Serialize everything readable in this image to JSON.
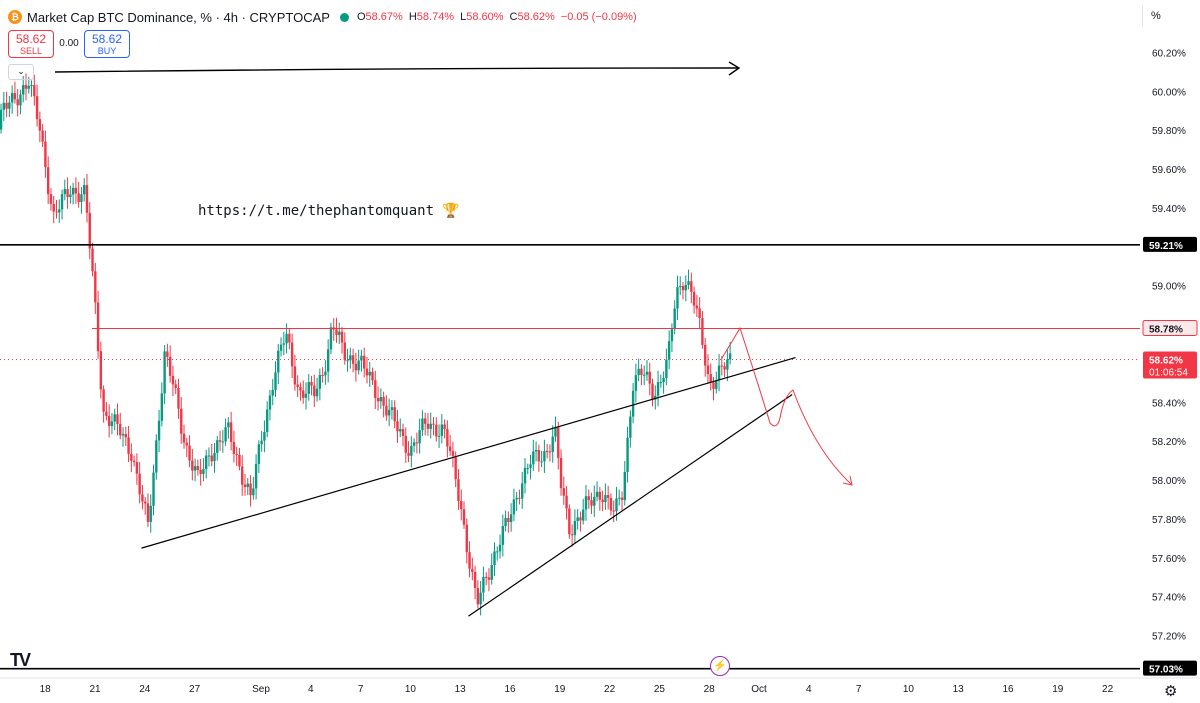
{
  "header": {
    "logo_glyph": "₿",
    "title": "Market Cap BTC Dominance, % · 4h · CRYPTOCAP",
    "ohlc": [
      {
        "key": "O",
        "value": "58.67%"
      },
      {
        "key": "H",
        "value": "58.74%"
      },
      {
        "key": "L",
        "value": "58.60%"
      },
      {
        "key": "C",
        "value": "58.62%"
      },
      {
        "key": "",
        "value": "−0.05 (−0.09%)"
      }
    ]
  },
  "trade": {
    "sell_price": "58.62",
    "sell_label": "SELL",
    "spread": "0.00",
    "buy_price": "58.62",
    "buy_label": "BUY"
  },
  "toolbar": {
    "scale_mode": "%",
    "collapse_glyph": "⌄",
    "settings_glyph": "⚙",
    "tv_logo": "TV",
    "bolt_glyph": "⚡"
  },
  "colors": {
    "up": "#089981",
    "down": "#f23645",
    "red_level": "#f23645",
    "black": "#000000"
  },
  "chart_data": {
    "type": "candlestick",
    "symbol": "Market Cap BTC Dominance, %",
    "interval": "4h",
    "ylim": [
      57.13,
      60.3
    ],
    "y_ticks": [
      "60.20%",
      "60.00%",
      "59.80%",
      "59.60%",
      "59.40%",
      "59.20%",
      "59.00%",
      "58.80%",
      "58.60%",
      "58.40%",
      "58.20%",
      "58.00%",
      "57.80%",
      "57.60%",
      "57.40%",
      "57.20%"
    ],
    "y_tick_values": [
      60.2,
      60.0,
      59.8,
      59.6,
      59.4,
      59.2,
      59.0,
      58.8,
      58.6,
      58.4,
      58.2,
      58.0,
      57.8,
      57.6,
      57.4,
      57.2
    ],
    "x_ticks": [
      "18",
      "21",
      "24",
      "27",
      "Sep",
      "4",
      "7",
      "10",
      "13",
      "16",
      "19",
      "22",
      "25",
      "28",
      "Oct",
      "4",
      "7",
      "10",
      "13",
      "16",
      "19",
      "22"
    ],
    "x_tick_days": [
      -13,
      -10,
      -7,
      -4,
      0,
      3,
      6,
      9,
      12,
      15,
      18,
      21,
      24,
      27,
      30,
      33,
      36,
      39,
      42,
      45,
      48,
      51
    ],
    "price_labels": [
      {
        "text": "59.21%",
        "value": 59.21,
        "style": "black"
      },
      {
        "text": "58.78%",
        "value": 58.78,
        "style": "red"
      },
      {
        "text": "58.62%",
        "sub": "01:06:54",
        "value": 58.62,
        "style": "current"
      },
      {
        "text": "57.03%",
        "value": 57.03,
        "style": "black"
      }
    ],
    "levels": [
      {
        "value": 59.21,
        "style": "black"
      },
      {
        "value": 58.78,
        "style": "red"
      },
      {
        "value": 57.03,
        "style": "black"
      }
    ],
    "current_price": 58.62,
    "annotation": "https://t.me/thephantomquant 🏆",
    "anchors": [
      {
        "day": -19,
        "close": 59.85
      },
      {
        "day": -17.5,
        "close": 59.5
      },
      {
        "day": -15.5,
        "close": 59.9
      },
      {
        "day": -14,
        "close": 60.05
      },
      {
        "day": -13.3,
        "close": 59.8
      },
      {
        "day": -12.5,
        "close": 59.35
      },
      {
        "day": -11.5,
        "close": 59.5
      },
      {
        "day": -10.6,
        "close": 59.47
      },
      {
        "day": -10,
        "close": 58.9
      },
      {
        "day": -9.5,
        "close": 58.35
      },
      {
        "day": -8.5,
        "close": 58.25
      },
      {
        "day": -7.8,
        "close": 58.15
      },
      {
        "day": -7.2,
        "close": 57.9
      },
      {
        "day": -6.8,
        "close": 57.76
      },
      {
        "day": -6.3,
        "close": 58.2
      },
      {
        "day": -5.8,
        "close": 58.65
      },
      {
        "day": -5.2,
        "close": 58.45
      },
      {
        "day": -4.6,
        "close": 58.2
      },
      {
        "day": -3.8,
        "close": 58.0
      },
      {
        "day": -3,
        "close": 58.15
      },
      {
        "day": -2,
        "close": 58.25
      },
      {
        "day": -1.2,
        "close": 58.05
      },
      {
        "day": -0.6,
        "close": 57.9
      },
      {
        "day": 0,
        "close": 58.2
      },
      {
        "day": 0.8,
        "close": 58.55
      },
      {
        "day": 1.5,
        "close": 58.75
      },
      {
        "day": 2.3,
        "close": 58.45
      },
      {
        "day": 3.3,
        "close": 58.45
      },
      {
        "day": 4,
        "close": 58.65
      },
      {
        "day": 4.3,
        "close": 58.8
      },
      {
        "day": 5,
        "close": 58.65
      },
      {
        "day": 6,
        "close": 58.6
      },
      {
        "day": 7,
        "close": 58.45
      },
      {
        "day": 8,
        "close": 58.3
      },
      {
        "day": 9,
        "close": 58.15
      },
      {
        "day": 10,
        "close": 58.3
      },
      {
        "day": 11,
        "close": 58.25
      },
      {
        "day": 11.5,
        "close": 58.1
      },
      {
        "day": 12,
        "close": 57.9
      },
      {
        "day": 12.5,
        "close": 57.6
      },
      {
        "day": 13,
        "close": 57.35
      },
      {
        "day": 13.5,
        "close": 57.5
      },
      {
        "day": 14.5,
        "close": 57.7
      },
      {
        "day": 15.5,
        "close": 57.95
      },
      {
        "day": 16.3,
        "close": 58.1
      },
      {
        "day": 17.2,
        "close": 58.15
      },
      {
        "day": 17.7,
        "close": 58.25
      },
      {
        "day": 18.1,
        "close": 57.95
      },
      {
        "day": 18.6,
        "close": 57.75
      },
      {
        "day": 19.5,
        "close": 57.85
      },
      {
        "day": 20.5,
        "close": 57.95
      },
      {
        "day": 21.3,
        "close": 57.82
      },
      {
        "day": 21.8,
        "close": 57.95
      },
      {
        "day": 22.4,
        "close": 58.5
      },
      {
        "day": 23,
        "close": 58.55
      },
      {
        "day": 23.7,
        "close": 58.45
      },
      {
        "day": 24.5,
        "close": 58.6
      },
      {
        "day": 25,
        "close": 58.95
      },
      {
        "day": 25.5,
        "close": 59.05
      },
      {
        "day": 26,
        "close": 58.95
      },
      {
        "day": 26.5,
        "close": 58.75
      },
      {
        "day": 27,
        "close": 58.5
      },
      {
        "day": 27.6,
        "close": 58.55
      },
      {
        "day": 28.4,
        "close": 58.62
      }
    ]
  }
}
